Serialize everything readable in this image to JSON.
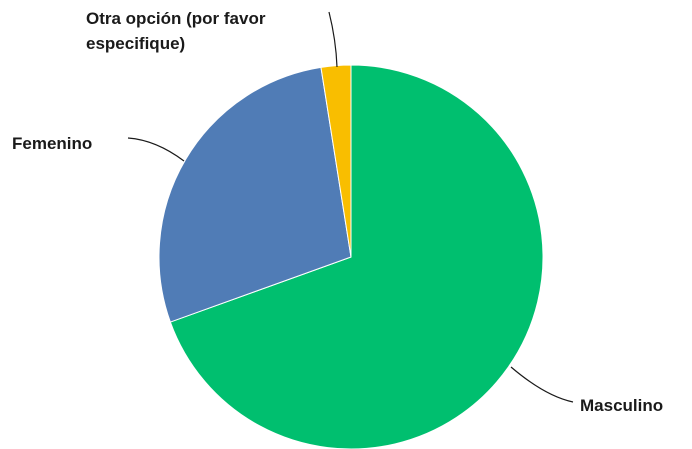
{
  "chart_data": {
    "type": "pie",
    "title": "",
    "slices": [
      {
        "label": "Masculino",
        "value": 69.5,
        "color": "#00BF6F"
      },
      {
        "label": "Femenino",
        "value": 28.0,
        "color": "#507CB6"
      },
      {
        "label": "Otra opción (por favor especifique)",
        "value": 2.5,
        "color": "#F9BE00"
      }
    ],
    "start_angle_deg": 0,
    "direction": "clockwise",
    "legend": "none",
    "data_labels": "category-outside-with-leaders"
  }
}
